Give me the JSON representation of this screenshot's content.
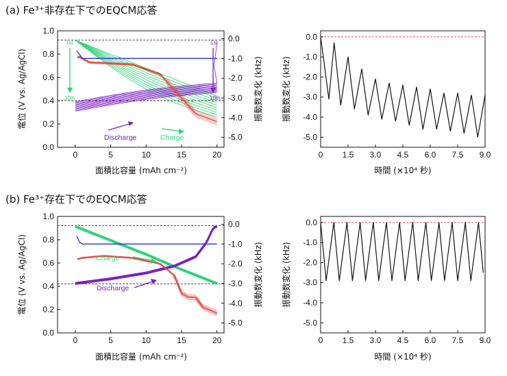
{
  "panel_a": {
    "title": "(a) Fe³⁺非存在下でのEQCM応答",
    "left": {
      "xlabel": "面積比容量 (mAh cm⁻²)",
      "ylabel": "電位 (V vs. Ag/AgCl)",
      "y2label": "振動数変化 (kHz)",
      "x_ticks": [
        "0",
        "5",
        "10",
        "15",
        "20"
      ],
      "y_ticks": [
        "0.0",
        "0.2",
        "0.4",
        "0.6",
        "0.8",
        "1.0"
      ],
      "y2_ticks": [
        "0.0",
        "-1.0",
        "-2.0",
        "-3.0",
        "-4.0",
        "-5.0"
      ],
      "discharge_label": "Discharge",
      "charge_label": "Charge",
      "cycle_first": "1st",
      "cycle_tenth": "10th",
      "cycle_first_right": "1st",
      "cycle_tenth_right": "10th"
    },
    "right": {
      "xlabel": "時間 (×10⁴ 秒)",
      "ylabel": "振動数変化 (kHz)",
      "x_ticks": [
        "0",
        "1.5",
        "3.0",
        "4.5",
        "6.0",
        "7.5",
        "9.0"
      ],
      "y_ticks": [
        "0.0",
        "-1.0",
        "-2.0",
        "-3.0",
        "-4.0",
        "-5.0"
      ]
    }
  },
  "panel_b": {
    "title": "(b) Fe³⁺存在下でのEQCM応答",
    "left": {
      "xlabel": "面積比容量 (mAh cm⁻²)",
      "ylabel": "電位 (V vs. Ag/AgCl)",
      "y2label": "振動数変化 (kHz)",
      "x_ticks": [
        "0",
        "5",
        "10",
        "15",
        "20"
      ],
      "y_ticks": [
        "0.0",
        "0.2",
        "0.4",
        "0.6",
        "0.8",
        "1.0"
      ],
      "y2_ticks": [
        "0.0",
        "-1.0",
        "-2.0",
        "-3.0",
        "-4.0",
        "-5.0"
      ],
      "discharge_label": "Discharge",
      "charge_label": "Charge"
    },
    "right": {
      "xlabel": "時間 (×10⁴ 秒)",
      "ylabel": "振動数変化 (kHz)",
      "x_ticks": [
        "0",
        "1.5",
        "3.0",
        "4.5",
        "6.0",
        "7.5",
        "9.0"
      ],
      "y_ticks": [
        "0.0",
        "-1.0",
        "-2.0",
        "-3.0",
        "-4.0",
        "-5.0"
      ]
    }
  },
  "colors": {
    "green": "#2bd37a",
    "purple": "#7a1fc2",
    "red": "#e8473a",
    "blue": "#2233dd",
    "black": "#111111",
    "ref_red": "#e33333"
  },
  "chart_data": [
    {
      "type": "line",
      "panel": "a-left",
      "xlim": [
        -2.5,
        21
      ],
      "ylim": [
        0.0,
        1.0
      ],
      "y2lim": [
        -5.5,
        0.4
      ],
      "reference_lines": {
        "y_left": [
          0.92,
          0.4
        ]
      },
      "discharge_potential_v": {
        "x": [
          0,
          20
        ],
        "y": [
          0.42,
          0.5
        ],
        "cycles": 10,
        "start_v_first": 0.31,
        "start_v_last": 0.39
      },
      "charge_potential_v": {
        "x": [
          0,
          20
        ],
        "y": [
          0.92,
          0.28
        ],
        "cycles": 10
      },
      "frequency_khz": {
        "x": [
          0,
          0.5,
          2,
          8,
          12,
          15,
          17,
          20
        ],
        "y": [
          -1.0,
          -0.9,
          -1.2,
          -1.3,
          -1.8,
          -3.0,
          -3.8,
          -4.2
        ]
      },
      "blue_trace_khz": {
        "x": [
          0.2,
          0.6,
          1.0,
          20
        ],
        "y": [
          -0.6,
          -0.8,
          -1.0,
          -1.0
        ]
      }
    },
    {
      "type": "line",
      "panel": "a-right",
      "xlim": [
        0,
        9.0
      ],
      "ylim": [
        -5.5,
        0.3
      ],
      "reference_line_y": 0.0,
      "x": [
        0,
        0.45,
        0.74,
        1.1,
        1.5,
        1.85,
        2.25,
        2.6,
        3.0,
        3.35,
        3.75,
        4.1,
        4.5,
        4.85,
        5.25,
        5.6,
        6.0,
        6.35,
        6.75,
        7.1,
        7.5,
        7.85,
        8.25,
        8.6,
        9.0
      ],
      "y": [
        0,
        -3.1,
        -0.3,
        -3.4,
        -1.0,
        -3.6,
        -1.6,
        -3.9,
        -2.1,
        -4.1,
        -2.3,
        -4.2,
        -2.4,
        -4.4,
        -2.5,
        -4.6,
        -2.6,
        -4.6,
        -2.8,
        -4.7,
        -2.8,
        -4.8,
        -2.9,
        -5.0,
        -2.9
      ]
    },
    {
      "type": "line",
      "panel": "b-left",
      "xlim": [
        -2.5,
        21
      ],
      "ylim": [
        0.0,
        1.0
      ],
      "y2lim": [
        -5.5,
        0.4
      ],
      "reference_lines": {
        "y_left": [
          0.92,
          0.42
        ]
      },
      "discharge_potential_v": {
        "x": [
          0,
          5,
          10,
          14,
          17,
          18.5,
          19.5,
          20
        ],
        "y": [
          0.43,
          0.47,
          0.52,
          0.58,
          0.66,
          0.78,
          0.91,
          0.92
        ]
      },
      "charge_potential_v": {
        "x": [
          0,
          5,
          10,
          15,
          20
        ],
        "y": [
          0.92,
          0.8,
          0.68,
          0.55,
          0.43
        ]
      },
      "frequency_khz": {
        "x": [
          0,
          1,
          4,
          8,
          12,
          14,
          15,
          16,
          17,
          18,
          20
        ],
        "y": [
          -1.8,
          -1.7,
          -1.6,
          -1.7,
          -2.0,
          -2.6,
          -3.5,
          -3.7,
          -3.7,
          -4.2,
          -4.5
        ]
      },
      "blue_trace_khz": {
        "x": [
          0.2,
          0.6,
          1.0,
          20
        ],
        "y": [
          -0.6,
          -0.9,
          -1.0,
          -1.0
        ]
      }
    },
    {
      "type": "line",
      "panel": "b-right",
      "xlim": [
        0,
        9.0
      ],
      "ylim": [
        -5.5,
        0.3
      ],
      "reference_line_y": 0.0,
      "x": [
        0,
        0.3,
        0.72,
        1.02,
        1.44,
        1.74,
        2.16,
        2.46,
        2.88,
        3.18,
        3.6,
        3.9,
        4.32,
        4.62,
        5.04,
        5.34,
        5.76,
        6.06,
        6.48,
        6.78,
        7.2,
        7.5,
        7.92,
        8.22,
        8.64,
        8.9
      ],
      "y": [
        0,
        -2.9,
        0,
        -2.9,
        0,
        -2.9,
        0,
        -2.9,
        0,
        -2.9,
        0,
        -2.9,
        0,
        -2.9,
        0,
        -2.9,
        0,
        -2.9,
        0,
        -2.9,
        0,
        -2.9,
        0,
        -2.9,
        0,
        -2.5
      ]
    }
  ]
}
